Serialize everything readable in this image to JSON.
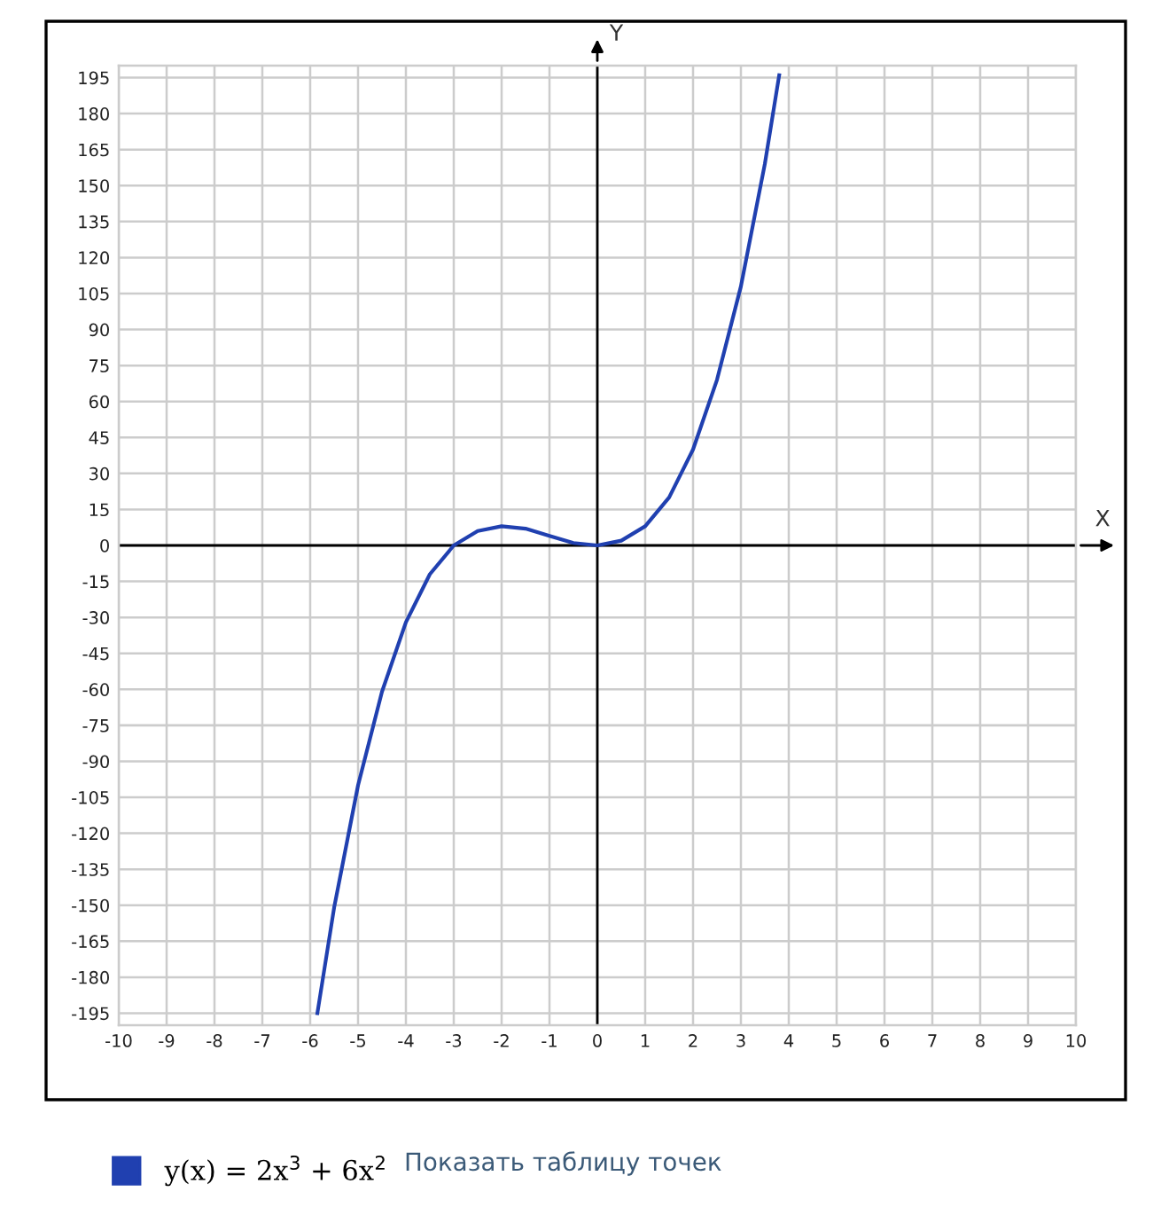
{
  "chart_data": {
    "type": "line",
    "xlabel": "X",
    "ylabel": "Y",
    "xlim": [
      -10,
      10
    ],
    "ylim": [
      -200,
      200
    ],
    "xticks": [
      -10,
      -9,
      -8,
      -7,
      -6,
      -5,
      -4,
      -3,
      -2,
      -1,
      0,
      1,
      2,
      3,
      4,
      5,
      6,
      7,
      8,
      9,
      10
    ],
    "yticks": [
      -195,
      -180,
      -165,
      -150,
      -135,
      -120,
      -105,
      -90,
      -75,
      -60,
      -45,
      -30,
      -15,
      0,
      15,
      30,
      45,
      60,
      75,
      90,
      105,
      120,
      135,
      150,
      165,
      180,
      195
    ],
    "grid": true,
    "legend": "bottom",
    "marker": "none",
    "line_style": "solid",
    "series": [
      {
        "name": "y(x) = 2x$^{3}$ + 6x$^{2}$",
        "color": "#2040b0",
        "x": [
          -5.85,
          -5.5,
          -5,
          -4.5,
          -4,
          -3.5,
          -3,
          -2.5,
          -2,
          -1.5,
          -1,
          -0.5,
          0,
          0.5,
          1,
          1.5,
          2,
          2.5,
          3,
          3.5,
          3.8
        ],
        "values": [
          -195,
          -151,
          -100,
          -61,
          -32,
          -12,
          0,
          6,
          8,
          7,
          4,
          1,
          0,
          2,
          8,
          20,
          40,
          69,
          108,
          159,
          196
        ]
      }
    ],
    "annotations": [
      "Показать таблицу точек"
    ]
  }
}
